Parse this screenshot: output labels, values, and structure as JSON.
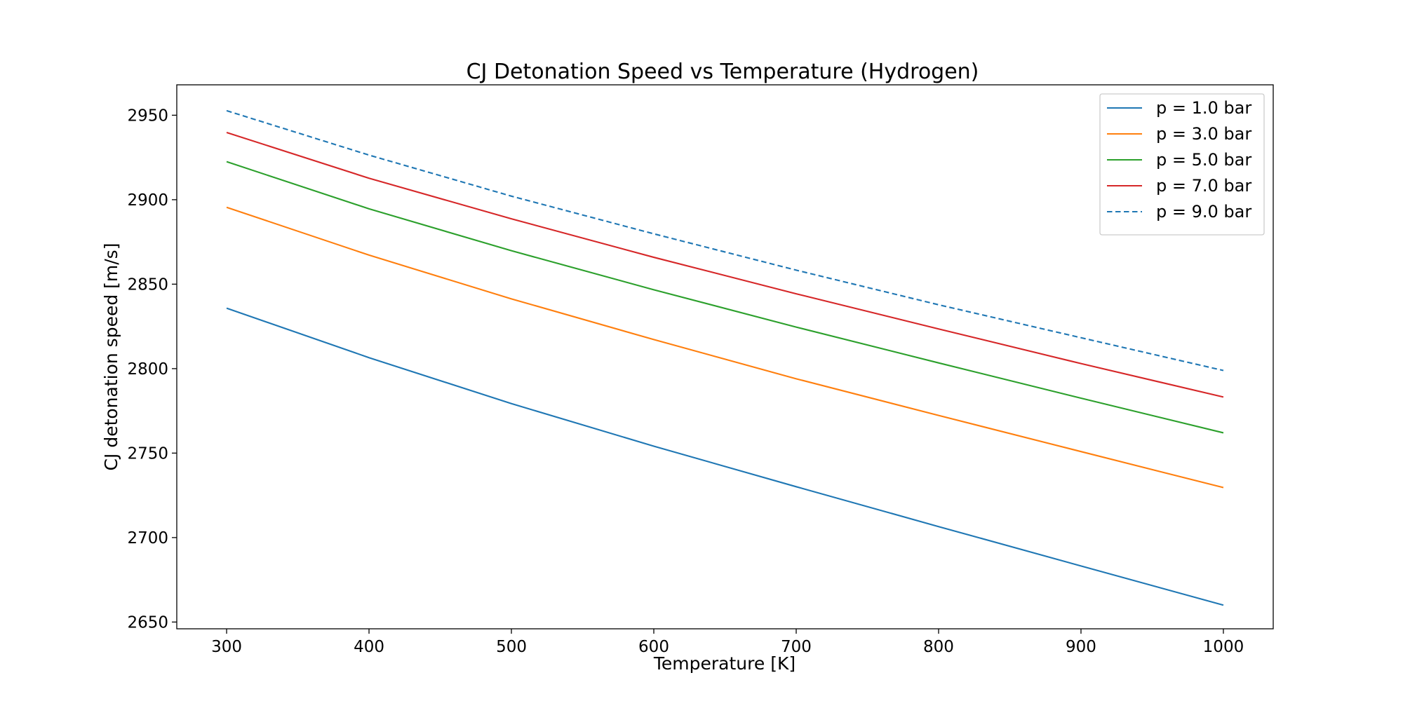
{
  "chart_data": {
    "type": "line",
    "title": "CJ Detonation Speed vs Temperature (Hydrogen)",
    "xlabel": "Temperature [K]",
    "ylabel": "CJ detonation speed [m/s]",
    "x": [
      300,
      400,
      500,
      600,
      700,
      800,
      900,
      1000
    ],
    "xlim": [
      265,
      1035
    ],
    "ylim": [
      2646,
      2968
    ],
    "xticks": [
      300,
      400,
      500,
      600,
      700,
      800,
      900,
      1000
    ],
    "yticks": [
      2650,
      2700,
      2750,
      2800,
      2850,
      2900,
      2950
    ],
    "grid": false,
    "legend_position": "top-right",
    "series": [
      {
        "name": "p = 1.0 bar",
        "color": "#1f77b4",
        "dash": "solid",
        "values": [
          2835.8,
          2806.5,
          2779.3,
          2754.1,
          2730.1,
          2706.5,
          2683.2,
          2660.0
        ]
      },
      {
        "name": "p = 3.0 bar",
        "color": "#ff7f0e",
        "dash": "solid",
        "values": [
          2895.5,
          2867.2,
          2841.3,
          2817.2,
          2794.0,
          2772.3,
          2750.9,
          2729.6
        ]
      },
      {
        "name": "p = 5.0 bar",
        "color": "#2ca02c",
        "dash": "solid",
        "values": [
          2922.5,
          2894.6,
          2869.8,
          2846.7,
          2824.6,
          2803.4,
          2782.5,
          2762.0
        ]
      },
      {
        "name": "p = 7.0 bar",
        "color": "#d62728",
        "dash": "solid",
        "values": [
          2939.8,
          2912.7,
          2888.7,
          2865.9,
          2844.3,
          2823.5,
          2803.0,
          2783.2
        ]
      },
      {
        "name": "p = 9.0 bar",
        "color": "#1f77b4",
        "dash": "dashed",
        "values": [
          2952.7,
          2926.4,
          2902.1,
          2879.8,
          2858.3,
          2837.8,
          2818.3,
          2798.9
        ]
      }
    ]
  }
}
